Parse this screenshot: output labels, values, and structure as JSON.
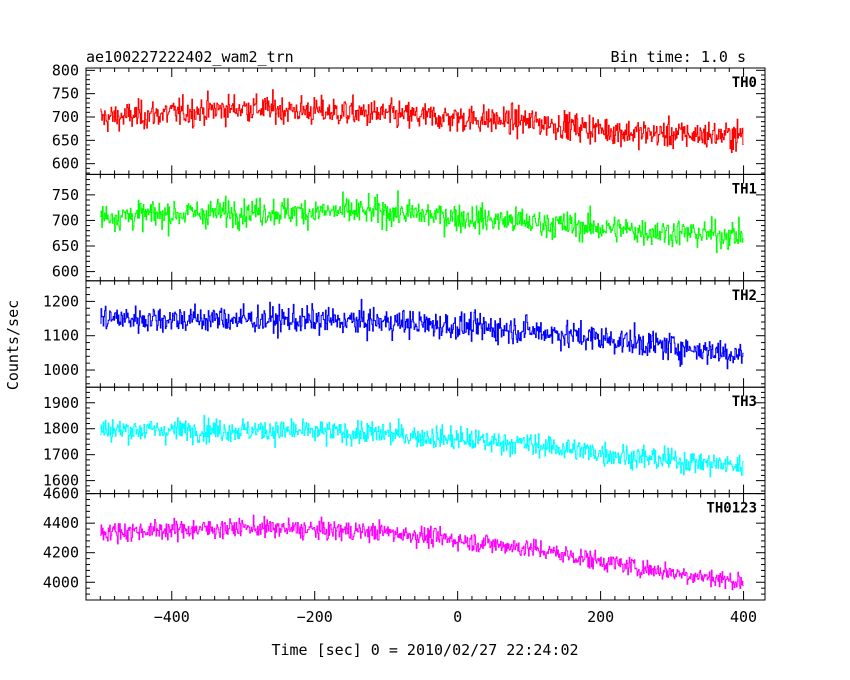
{
  "header": {
    "title": "ae100227222402_wam2_trn",
    "bin_time": "Bin time: 1.0 s"
  },
  "chart_data": {
    "type": "line",
    "title": "ae100227222402_wam2_trn",
    "subtitle": "Bin time: 1.0 s",
    "xlabel": "Time [sec] 0 = 2010/02/27 22:24:02",
    "ylabel": "Counts/sec",
    "xlim": [
      -520,
      430
    ],
    "x_range": [
      -500,
      400
    ],
    "x_ticks": [
      -400,
      -200,
      0,
      200,
      400
    ],
    "x_tick_labels": [
      "−400",
      "−200",
      "0",
      "200",
      "400"
    ],
    "bin_seconds": 1.0,
    "grid": false,
    "panels": [
      {
        "name": "TH0",
        "color": "#ff0000",
        "ylim": [
          577,
          805
        ],
        "yticks": [
          600,
          650,
          700,
          750,
          800
        ],
        "trend": [
          [
            -500,
            697
          ],
          [
            -300,
            720
          ],
          [
            -100,
            705
          ],
          [
            100,
            690
          ],
          [
            250,
            665
          ],
          [
            400,
            660
          ]
        ],
        "noise_sd": 30
      },
      {
        "name": "TH1",
        "color": "#00ff00",
        "ylim": [
          582,
          790
        ],
        "yticks": [
          600,
          650,
          700,
          750
        ],
        "trend": [
          [
            -500,
            708
          ],
          [
            -300,
            717
          ],
          [
            -100,
            717
          ],
          [
            100,
            696
          ],
          [
            250,
            680
          ],
          [
            400,
            670
          ]
        ],
        "noise_sd": 27
      },
      {
        "name": "TH2",
        "color": "#0000ff",
        "ylim": [
          950,
          1260
        ],
        "yticks": [
          1000,
          1100,
          1200
        ],
        "trend": [
          [
            -500,
            1150
          ],
          [
            -300,
            1148
          ],
          [
            -100,
            1140
          ],
          [
            100,
            1115
          ],
          [
            250,
            1080
          ],
          [
            400,
            1045
          ]
        ],
        "noise_sd": 40
      },
      {
        "name": "TH3",
        "color": "#00ffff",
        "ylim": [
          1550,
          1960
        ],
        "yticks": [
          1600,
          1700,
          1800,
          1900
        ],
        "trend": [
          [
            -500,
            1795
          ],
          [
            -300,
            1795
          ],
          [
            -100,
            1780
          ],
          [
            100,
            1740
          ],
          [
            250,
            1690
          ],
          [
            400,
            1655
          ]
        ],
        "noise_sd": 45
      },
      {
        "name": "TH0123",
        "color": "#ff00ff",
        "ylim": [
          3880,
          4600
        ],
        "yticks": [
          4000,
          4200,
          4400,
          4600
        ],
        "trend": [
          [
            -500,
            4340
          ],
          [
            -300,
            4370
          ],
          [
            -100,
            4340
          ],
          [
            100,
            4230
          ],
          [
            250,
            4100
          ],
          [
            400,
            4000
          ]
        ],
        "noise_sd": 65
      }
    ]
  }
}
